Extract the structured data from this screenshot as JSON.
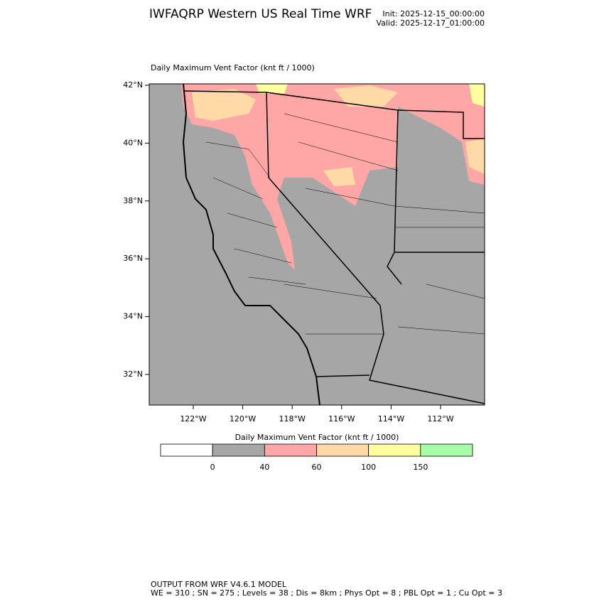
{
  "header": {
    "title": "IWFAQRP Western US Real Time WRF",
    "init": "Init: 2025-12-15_00:00:00",
    "valid": "Valid: 2025-12-17_01:00:00"
  },
  "map": {
    "label": "Daily Maximum Vent Factor   (knt ft / 1000)",
    "lat_labels": [
      "42°N",
      "40°N",
      "38°N",
      "36°N",
      "34°N",
      "32°N"
    ],
    "lon_labels": [
      "122°W",
      "120°W",
      "118°W",
      "116°W",
      "114°W",
      "112°W"
    ]
  },
  "colorbar": {
    "title": "Daily Maximum Vent Factor  (knt ft / 1000)",
    "colors": [
      "#ffffff",
      "#a6a6a6",
      "#ffa6a6",
      "#ffd9a6",
      "#ffff9f",
      "#a6ffa6"
    ],
    "ticks": [
      0,
      40,
      60,
      100,
      150
    ]
  },
  "footer": {
    "line1": "OUTPUT FROM WRF V4.6.1 MODEL",
    "line2": "WE = 310 ; SN = 275 ; Levels = 38 ; Dis = 8km ; Phys Opt = 8 ; PBL Opt = 1 ; Cu Opt = 3"
  }
}
